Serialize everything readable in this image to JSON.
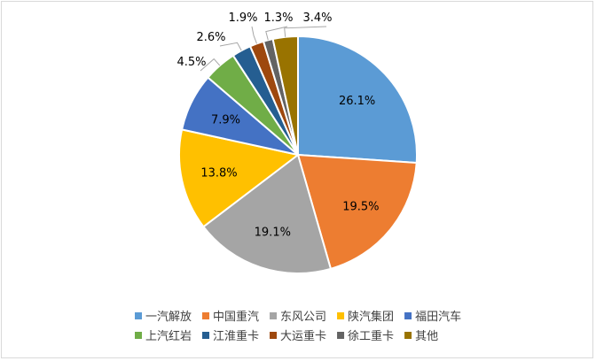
{
  "chart_data": {
    "type": "pie",
    "legend_position": "bottom",
    "categories": [
      "一汽解放",
      "中国重汽",
      "东风公司",
      "陕汽集团",
      "福田汽车",
      "上汽红岩",
      "江淮重卡",
      "大运重卡",
      "徐工重卡",
      "其他"
    ],
    "values": [
      26.1,
      19.5,
      19.1,
      13.8,
      7.9,
      4.5,
      2.6,
      1.9,
      1.3,
      3.4
    ],
    "labels": [
      "26.1%",
      "19.5%",
      "19.1%",
      "13.8%",
      "7.9%",
      "4.5%",
      "2.6%",
      "1.9%",
      "1.3%",
      "3.4%"
    ],
    "colors": [
      "#5b9bd5",
      "#ed7d31",
      "#a5a5a5",
      "#ffc000",
      "#4472c4",
      "#70ad47",
      "#255e91",
      "#9e480e",
      "#636363",
      "#997300"
    ]
  }
}
